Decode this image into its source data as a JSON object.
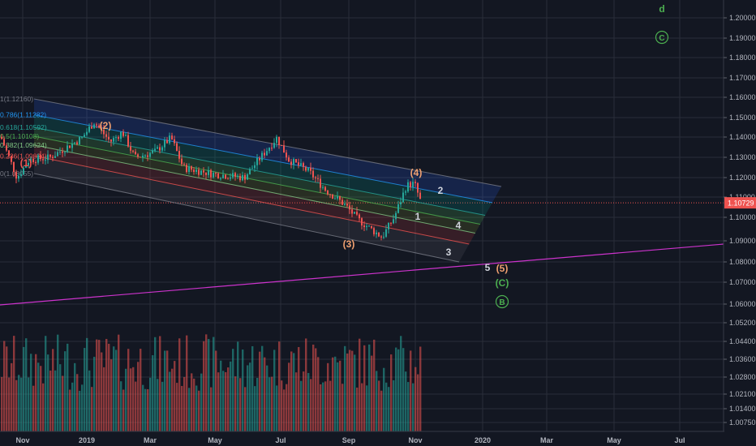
{
  "chart_data": {
    "type": "candlestick",
    "symbol_price_label": "1.10729",
    "y_axis": {
      "ticks": [
        "1.20000",
        "1.19000",
        "1.18000",
        "1.17000",
        "1.16000",
        "1.15000",
        "1.14000",
        "1.13000",
        "1.12000",
        "1.11000",
        "1.10000",
        "1.09000",
        "1.08000",
        "1.07000",
        "1.06000",
        "1.05200",
        "1.04400",
        "1.03600",
        "1.02800",
        "1.02100",
        "1.01400",
        "1.00750"
      ]
    },
    "x_axis": {
      "ticks": [
        "Nov",
        "2019",
        "Mar",
        "May",
        "Jul",
        "Sep",
        "Nov",
        "2020",
        "Mar",
        "May",
        "Jul"
      ],
      "bold_ticks": [
        "2019",
        "2020"
      ]
    },
    "current_price": 1.10729,
    "price_start": 1.1405,
    "price_low": 1.0879,
    "fib_levels": [
      {
        "label": "1(1.12160)",
        "ratio": 1
      },
      {
        "label": "0.786(1.11282)",
        "ratio": 0.786
      },
      {
        "label": "0.618(1.10592)",
        "ratio": 0.618
      },
      {
        "label": "0.5(1.10108)",
        "ratio": 0.5
      },
      {
        "label": "0.382(1.09624)",
        "ratio": 0.382
      },
      {
        "label": "0.236(1.09024)",
        "ratio": 0.236
      },
      {
        "label": "0(1.08055)",
        "ratio": 0
      }
    ],
    "wave_labels": [
      "(1)",
      "(2)",
      "(3)",
      "(4)",
      "(5)",
      "5",
      "1",
      "2",
      "3",
      "4",
      "(C)",
      "B",
      "C",
      "d"
    ],
    "colors": {
      "background": "#131722",
      "grid": "#2a2e39",
      "up": "#26a69a",
      "down": "#ef5350",
      "volume_up": "#26a69a",
      "volume_down": "#ef5350",
      "trendline": "#cc33cc",
      "wave_orange": "#f0a070",
      "wave_green": "#4caf50",
      "wave_red": "#ef5350",
      "price_tag": "#ef5350"
    }
  }
}
